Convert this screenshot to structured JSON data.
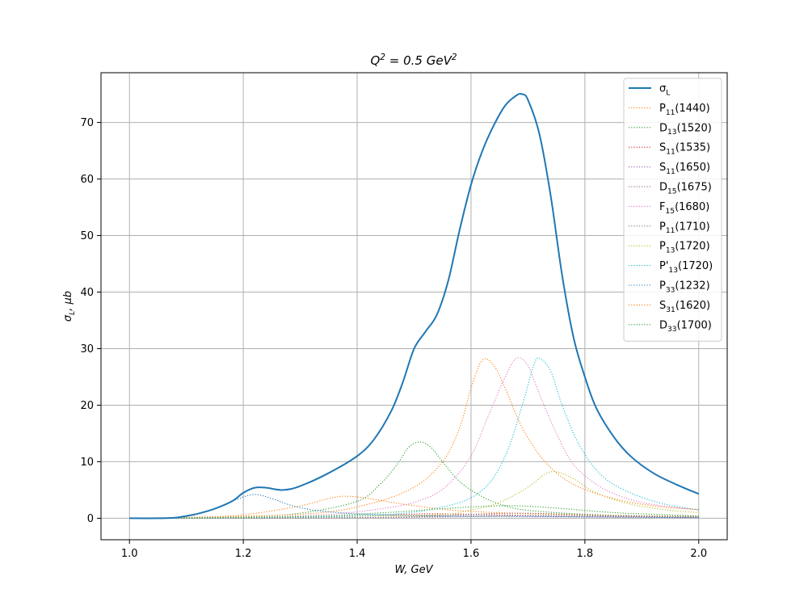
{
  "chart_data": {
    "type": "line",
    "title": "Q^2 = 0.5 GeV^2",
    "xlabel": "W, GeV",
    "ylabel": "σ_L, μb",
    "xlim": [
      0.95,
      2.05
    ],
    "ylim": [
      -3.8,
      78.8
    ],
    "xticks": [
      "1.0",
      "1.2",
      "1.4",
      "1.6",
      "1.8",
      "2.0"
    ],
    "yticks": [
      "0",
      "10",
      "20",
      "30",
      "40",
      "50",
      "60",
      "70"
    ],
    "grid": true,
    "legend_position": "top-right",
    "series": [
      {
        "name": "σ_L",
        "color": "#1f77b4",
        "style": "solid",
        "x": [
          1.0,
          1.05,
          1.08,
          1.1,
          1.12,
          1.15,
          1.18,
          1.2,
          1.22,
          1.24,
          1.27,
          1.3,
          1.35,
          1.4,
          1.43,
          1.46,
          1.48,
          1.5,
          1.52,
          1.54,
          1.56,
          1.58,
          1.6,
          1.62,
          1.64,
          1.66,
          1.68,
          1.69,
          1.7,
          1.72,
          1.74,
          1.76,
          1.78,
          1.8,
          1.82,
          1.85,
          1.88,
          1.92,
          1.96,
          2.0
        ],
        "y": [
          0,
          0,
          0.1,
          0.4,
          0.8,
          1.7,
          3.0,
          4.5,
          5.4,
          5.4,
          5.0,
          5.7,
          8.0,
          11.0,
          14.0,
          19.0,
          24.0,
          30.0,
          33.0,
          36.0,
          42.0,
          51.0,
          59.0,
          65.0,
          69.5,
          73.0,
          74.8,
          75.0,
          74.0,
          68.0,
          57.0,
          43.0,
          32.0,
          25.0,
          19.5,
          14.5,
          11.0,
          8.0,
          6.0,
          4.3
        ]
      },
      {
        "name": "P_11(1440)",
        "color": "#ff7f0e",
        "style": "dotted",
        "x": [
          1.0,
          1.1,
          1.2,
          1.3,
          1.35,
          1.38,
          1.42,
          1.48,
          1.55,
          1.6,
          1.7,
          1.8,
          1.9,
          2.0
        ],
        "y": [
          0,
          0.1,
          0.6,
          2.2,
          3.5,
          3.9,
          3.5,
          2.5,
          1.6,
          1.2,
          0.8,
          0.6,
          0.4,
          0.3
        ]
      },
      {
        "name": "D_13(1520)",
        "color": "#2ca02c",
        "style": "dotted",
        "x": [
          1.0,
          1.2,
          1.3,
          1.4,
          1.44,
          1.47,
          1.49,
          1.51,
          1.53,
          1.55,
          1.58,
          1.62,
          1.66,
          1.7,
          1.8,
          1.9,
          2.0
        ],
        "y": [
          0,
          0.3,
          0.9,
          3.0,
          6.0,
          9.5,
          12.5,
          13.5,
          12.5,
          10.0,
          6.5,
          3.8,
          2.2,
          1.4,
          0.7,
          0.4,
          0.3
        ]
      },
      {
        "name": "S_11(1535)",
        "color": "#d62728",
        "style": "dotted",
        "x": [
          1.0,
          1.3,
          1.45,
          1.53,
          1.6,
          1.7,
          1.8,
          2.0
        ],
        "y": [
          0,
          0.2,
          0.6,
          0.8,
          0.7,
          0.5,
          0.3,
          0.2
        ]
      },
      {
        "name": "S_11(1650)",
        "color": "#9467bd",
        "style": "dotted",
        "x": [
          1.0,
          1.4,
          1.55,
          1.65,
          1.75,
          1.9,
          2.0
        ],
        "y": [
          0,
          0.1,
          0.3,
          0.4,
          0.3,
          0.2,
          0.1
        ]
      },
      {
        "name": "D_15(1675)",
        "color": "#8c564b",
        "style": "dotted",
        "x": [
          1.0,
          1.4,
          1.55,
          1.68,
          1.8,
          1.9,
          2.0
        ],
        "y": [
          0,
          0.1,
          0.5,
          0.9,
          0.6,
          0.4,
          0.3
        ]
      },
      {
        "name": "F_15(1680)",
        "color": "#e377c2",
        "style": "dotted",
        "x": [
          1.0,
          1.3,
          1.45,
          1.52,
          1.56,
          1.6,
          1.63,
          1.66,
          1.68,
          1.7,
          1.72,
          1.75,
          1.78,
          1.82,
          1.86,
          1.9,
          1.95,
          2.0
        ],
        "y": [
          0,
          0.4,
          1.8,
          3.5,
          6.0,
          11.0,
          18.0,
          25.0,
          28.3,
          27.0,
          22.0,
          15.0,
          9.5,
          6.0,
          4.0,
          2.8,
          2.0,
          1.5
        ]
      },
      {
        "name": "P_11(1710)",
        "color": "#7f7f7f",
        "style": "dotted",
        "x": [
          1.0,
          1.4,
          1.6,
          1.71,
          1.8,
          1.9,
          2.0
        ],
        "y": [
          0,
          0.1,
          0.3,
          0.5,
          0.4,
          0.3,
          0.2
        ]
      },
      {
        "name": "P_13(1720)",
        "color": "#bcbd22",
        "style": "dotted",
        "x": [
          1.0,
          1.5,
          1.6,
          1.65,
          1.7,
          1.73,
          1.75,
          1.78,
          1.82,
          1.88,
          1.95,
          2.0
        ],
        "y": [
          0,
          0.5,
          1.5,
          2.8,
          5.5,
          7.8,
          8.2,
          7.0,
          4.5,
          2.5,
          1.4,
          1.0
        ]
      },
      {
        "name": "P'_13(1720)",
        "color": "#17becf",
        "style": "dotted",
        "x": [
          1.0,
          1.4,
          1.55,
          1.62,
          1.66,
          1.69,
          1.71,
          1.72,
          1.74,
          1.76,
          1.79,
          1.83,
          1.88,
          1.94,
          2.0
        ],
        "y": [
          0,
          0.4,
          2.0,
          5.0,
          11.0,
          20.0,
          27.0,
          28.3,
          26.0,
          20.0,
          13.0,
          7.5,
          4.5,
          2.5,
          1.5
        ]
      },
      {
        "name": "P_33(1232)",
        "color": "#1f77b4",
        "style": "dotted",
        "x": [
          1.0,
          1.08,
          1.12,
          1.16,
          1.19,
          1.22,
          1.25,
          1.28,
          1.32,
          1.38,
          1.45,
          1.55,
          1.7,
          1.85,
          2.0
        ],
        "y": [
          0,
          0.1,
          0.8,
          2.0,
          3.4,
          4.2,
          3.5,
          2.4,
          1.5,
          0.9,
          0.6,
          0.4,
          0.3,
          0.2,
          0.1
        ]
      },
      {
        "name": "S_31(1620)",
        "color": "#ff7f0e",
        "style": "dotted",
        "x": [
          1.0,
          1.3,
          1.42,
          1.5,
          1.55,
          1.58,
          1.6,
          1.62,
          1.64,
          1.66,
          1.69,
          1.73,
          1.78,
          1.85,
          1.92,
          2.0
        ],
        "y": [
          0,
          0.7,
          2.5,
          5.5,
          10.0,
          16.0,
          23.0,
          28.0,
          27.0,
          23.0,
          16.0,
          10.0,
          6.0,
          3.5,
          2.2,
          1.5
        ]
      },
      {
        "name": "D_33(1700)",
        "color": "#2ca02c",
        "style": "dotted",
        "x": [
          1.0,
          1.3,
          1.45,
          1.55,
          1.62,
          1.68,
          1.75,
          1.85,
          1.95,
          2.0
        ],
        "y": [
          0,
          0.3,
          1.0,
          1.7,
          2.1,
          2.2,
          1.8,
          1.0,
          0.6,
          0.4
        ]
      }
    ]
  }
}
